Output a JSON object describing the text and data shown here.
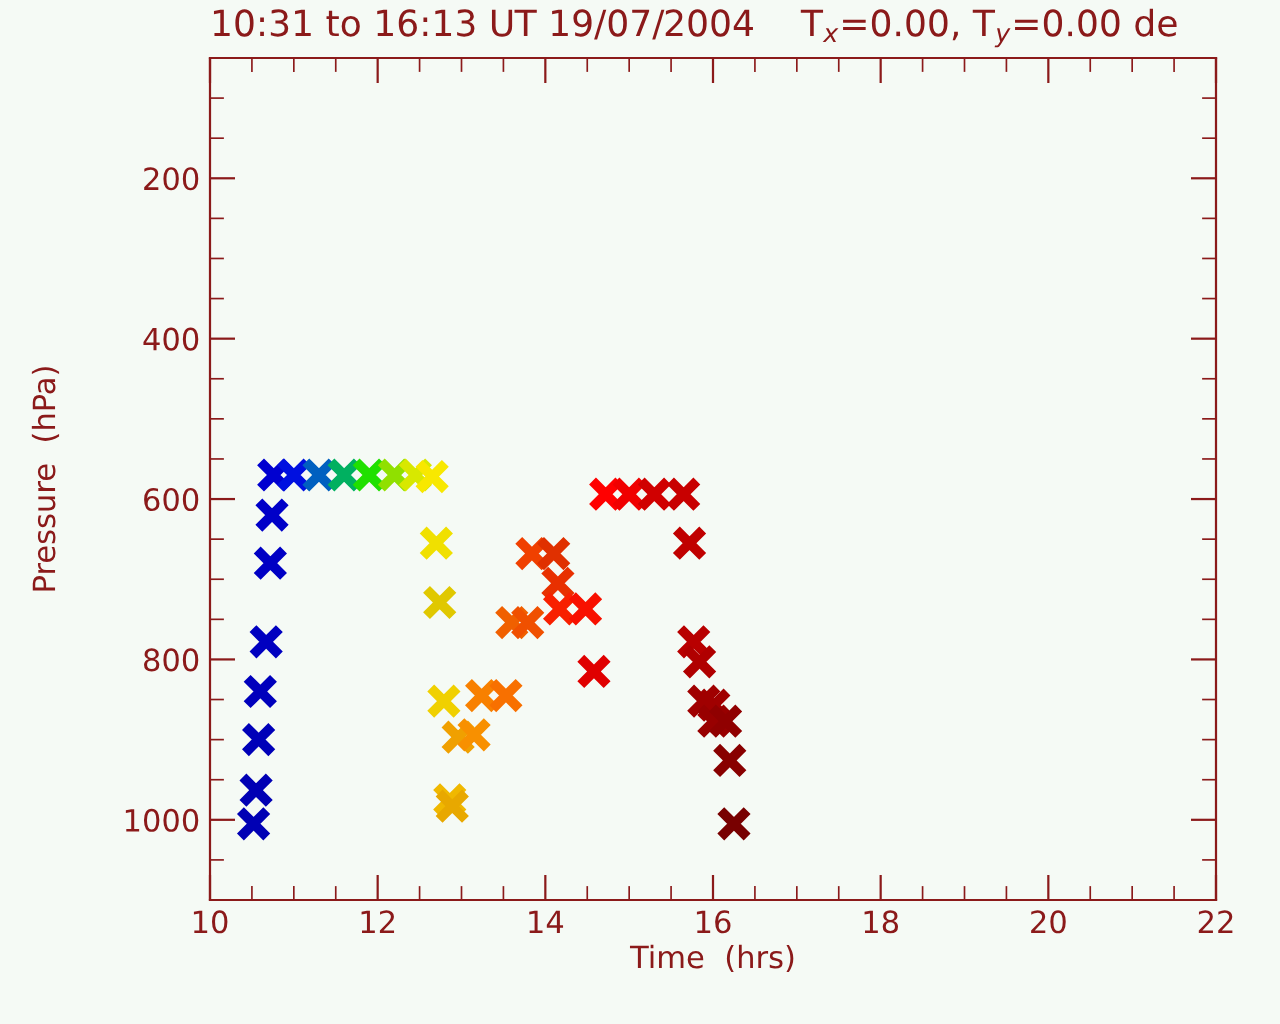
{
  "chart_data": {
    "type": "scatter",
    "title": "10:31 to 16:13 UT 19/07/2004    T$_{x}$=0.00, T$_{y}$=0.00 de",
    "xlabel": "Time  (hrs)",
    "ylabel": "Pressure  (hPa)",
    "x": [
      10.52,
      10.55,
      10.58,
      10.6,
      10.67,
      10.72,
      10.74,
      10.76,
      11.0,
      11.3,
      11.6,
      11.9,
      12.2,
      12.45,
      12.65,
      12.7,
      12.74,
      12.79,
      12.86,
      12.89,
      12.96,
      13.15,
      13.24,
      13.53,
      13.6,
      13.79,
      13.84,
      14.1,
      14.15,
      14.17,
      14.48,
      14.58,
      14.72,
      15.0,
      15.3,
      15.65,
      15.72,
      15.77,
      15.84,
      15.89,
      16.01,
      16.01,
      16.15,
      16.2,
      16.25
    ],
    "values": [
      1005,
      963,
      900,
      840,
      778,
      680,
      620,
      570,
      570,
      570,
      570,
      570,
      570,
      570,
      572,
      655,
      729,
      852,
      975,
      983,
      897,
      894,
      845,
      845,
      754,
      754,
      668,
      668,
      705,
      737,
      737,
      815,
      594,
      594,
      594,
      594,
      655,
      778,
      803,
      852,
      857,
      877,
      877,
      926,
      1005
    ],
    "colors": [
      "#0000b4",
      "#0000b4",
      "#0000b8",
      "#0000bc",
      "#0000c0",
      "#0000c4",
      "#0000c8",
      "#0000d0",
      "#0010e0",
      "#0060c0",
      "#00b060",
      "#20e000",
      "#90e000",
      "#d8e800",
      "#f8e800",
      "#f0e000",
      "#e0c800",
      "#f0d000",
      "#f0b800",
      "#e8a800",
      "#f0a000",
      "#f89000",
      "#f88000",
      "#f87000",
      "#f06000",
      "#f05000",
      "#f04000",
      "#e03000",
      "#e83000",
      "#f82000",
      "#f81000",
      "#e00000",
      "#ff0000",
      "#f00000",
      "#d00000",
      "#c80000",
      "#c00000",
      "#b80000",
      "#b00000",
      "#a00000",
      "#a00000",
      "#980000",
      "#900000",
      "#880000",
      "#780000"
    ],
    "marker": "cross",
    "xlim": [
      10,
      22
    ],
    "xticks": [
      10,
      12,
      14,
      16,
      18,
      20,
      22
    ],
    "ylim": [
      1100,
      50
    ],
    "yticks": [
      200,
      400,
      600,
      800,
      1000
    ],
    "grid": false,
    "legend": false
  }
}
